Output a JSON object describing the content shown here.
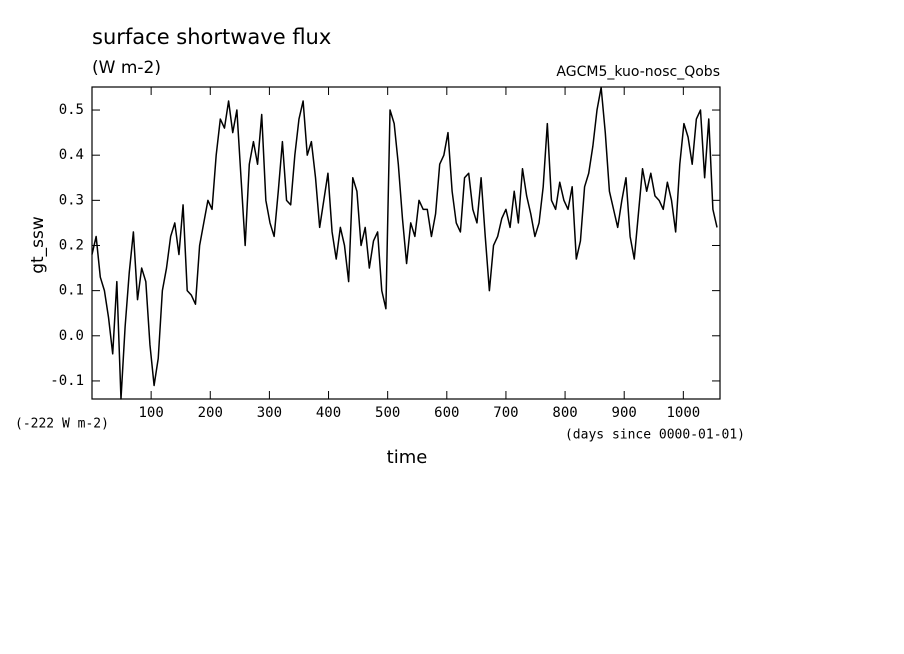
{
  "chart_data": {
    "type": "line",
    "title": "surface shortwave flux",
    "subtitle": "(W m-2)",
    "annotation": "AGCM5_kuo-nosc_Qobs",
    "offset_note": "(-222 W m-2)",
    "x_unit_note": "(days since 0000-01-01)",
    "xlabel": "time",
    "ylabel": "gt_ssw",
    "xlim": [
      0,
      1062
    ],
    "ylim": [
      -0.14,
      0.551
    ],
    "xticks": [
      100,
      200,
      300,
      400,
      500,
      600,
      700,
      800,
      900,
      1000
    ],
    "yticks": [
      -0.1,
      {
        "value": 0,
        "label": "0.0"
      },
      0.1,
      0.2,
      0.3,
      0.4,
      0.5
    ],
    "grid": false,
    "color": "#000000",
    "x": [
      0,
      7,
      14,
      21,
      28,
      35,
      42,
      49,
      56,
      63,
      70,
      77,
      84,
      91,
      98,
      105,
      112,
      119,
      126,
      133,
      140,
      147,
      154,
      161,
      168,
      175,
      182,
      189,
      196,
      203,
      210,
      217,
      224,
      231,
      238,
      245,
      252,
      259,
      266,
      273,
      280,
      287,
      294,
      301,
      308,
      315,
      322,
      329,
      336,
      343,
      350,
      357,
      364,
      371,
      378,
      385,
      392,
      399,
      406,
      413,
      420,
      427,
      434,
      441,
      448,
      455,
      462,
      469,
      476,
      483,
      490,
      497,
      504,
      511,
      518,
      525,
      532,
      539,
      546,
      553,
      560,
      567,
      574,
      581,
      588,
      595,
      602,
      609,
      616,
      623,
      630,
      637,
      644,
      651,
      658,
      665,
      672,
      679,
      686,
      693,
      700,
      707,
      714,
      721,
      728,
      735,
      742,
      749,
      756,
      763,
      770,
      777,
      784,
      791,
      798,
      805,
      812,
      819,
      826,
      833,
      840,
      847,
      854,
      861,
      868,
      875,
      882,
      889,
      896,
      903,
      910,
      917,
      924,
      931,
      938,
      945,
      952,
      959,
      966,
      973,
      980,
      987,
      994,
      1001,
      1008,
      1015,
      1022,
      1029,
      1036,
      1043,
      1050,
      1057
    ],
    "values": [
      0.18,
      0.22,
      0.13,
      0.1,
      0.04,
      -0.04,
      0.12,
      -0.14,
      0.02,
      0.14,
      0.23,
      0.08,
      0.15,
      0.12,
      -0.02,
      -0.11,
      -0.05,
      0.1,
      0.15,
      0.22,
      0.25,
      0.18,
      0.29,
      0.1,
      0.09,
      0.07,
      0.2,
      0.25,
      0.3,
      0.28,
      0.4,
      0.48,
      0.46,
      0.52,
      0.45,
      0.5,
      0.35,
      0.2,
      0.38,
      0.43,
      0.38,
      0.49,
      0.3,
      0.25,
      0.22,
      0.32,
      0.43,
      0.3,
      0.29,
      0.4,
      0.48,
      0.52,
      0.4,
      0.43,
      0.35,
      0.24,
      0.3,
      0.36,
      0.23,
      0.17,
      0.24,
      0.2,
      0.12,
      0.35,
      0.32,
      0.2,
      0.24,
      0.15,
      0.21,
      0.23,
      0.1,
      0.06,
      0.5,
      0.47,
      0.38,
      0.26,
      0.16,
      0.25,
      0.22,
      0.3,
      0.28,
      0.28,
      0.22,
      0.27,
      0.38,
      0.4,
      0.45,
      0.32,
      0.25,
      0.23,
      0.35,
      0.36,
      0.28,
      0.25,
      0.35,
      0.22,
      0.1,
      0.2,
      0.22,
      0.26,
      0.28,
      0.24,
      0.32,
      0.25,
      0.37,
      0.31,
      0.27,
      0.22,
      0.25,
      0.33,
      0.47,
      0.3,
      0.28,
      0.34,
      0.3,
      0.28,
      0.33,
      0.17,
      0.21,
      0.33,
      0.36,
      0.42,
      0.5,
      0.55,
      0.45,
      0.32,
      0.28,
      0.24,
      0.3,
      0.35,
      0.22,
      0.17,
      0.27,
      0.37,
      0.32,
      0.36,
      0.31,
      0.3,
      0.28,
      0.34,
      0.3,
      0.23,
      0.38,
      0.47,
      0.44,
      0.38,
      0.48,
      0.5,
      0.35,
      0.48,
      0.28,
      0.24
    ]
  }
}
